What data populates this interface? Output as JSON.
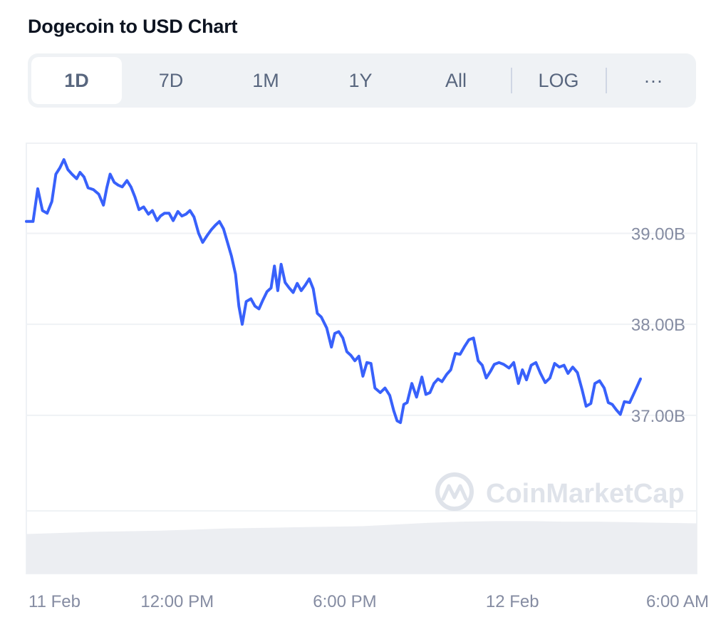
{
  "header": {
    "title": "Dogecoin to USD Chart"
  },
  "tabs": [
    {
      "label": "1D",
      "active": true
    },
    {
      "label": "7D",
      "active": false
    },
    {
      "label": "1M",
      "active": false
    },
    {
      "label": "1Y",
      "active": false
    },
    {
      "label": "All",
      "active": false
    },
    {
      "label": "LOG",
      "active": false
    },
    {
      "label": "···",
      "active": false
    }
  ],
  "watermark": {
    "text": "CoinMarketCap"
  },
  "colors": {
    "line": "#3861fb",
    "grid": "#eff2f5",
    "axis_text": "#858ca2",
    "volume": "#eceef2"
  },
  "chart_data": {
    "type": "line",
    "title": "Dogecoin to USD Chart",
    "xlabel": "",
    "ylabel": "",
    "y_tick_labels": [
      "39.00B",
      "38.00B",
      "37.00B"
    ],
    "y_ticks": [
      39.0,
      38.0,
      37.0
    ],
    "ylim": [
      35.95,
      39.99
    ],
    "x_tick_labels": [
      "11 Feb",
      "12:00 PM",
      "6:00 PM",
      "12 Feb",
      "6:00 AM"
    ],
    "x_ticks": [
      0.0,
      0.225,
      0.475,
      0.725,
      0.95
    ],
    "grid": true,
    "legend": "none",
    "series": [
      {
        "values": [
          [
            0.0,
            39.13
          ],
          [
            0.01,
            39.13
          ],
          [
            0.017,
            39.49
          ],
          [
            0.024,
            39.25
          ],
          [
            0.031,
            39.22
          ],
          [
            0.038,
            39.35
          ],
          [
            0.044,
            39.65
          ],
          [
            0.05,
            39.72
          ],
          [
            0.056,
            39.81
          ],
          [
            0.062,
            39.7
          ],
          [
            0.068,
            39.65
          ],
          [
            0.075,
            39.6
          ],
          [
            0.08,
            39.67
          ],
          [
            0.086,
            39.62
          ],
          [
            0.092,
            39.5
          ],
          [
            0.1,
            39.48
          ],
          [
            0.108,
            39.43
          ],
          [
            0.115,
            39.31
          ],
          [
            0.12,
            39.5
          ],
          [
            0.125,
            39.65
          ],
          [
            0.131,
            39.56
          ],
          [
            0.137,
            39.53
          ],
          [
            0.143,
            39.51
          ],
          [
            0.15,
            39.58
          ],
          [
            0.156,
            39.51
          ],
          [
            0.162,
            39.4
          ],
          [
            0.168,
            39.26
          ],
          [
            0.175,
            39.29
          ],
          [
            0.182,
            39.21
          ],
          [
            0.188,
            39.25
          ],
          [
            0.195,
            39.14
          ],
          [
            0.2,
            39.19
          ],
          [
            0.206,
            39.22
          ],
          [
            0.213,
            39.22
          ],
          [
            0.219,
            39.14
          ],
          [
            0.226,
            39.24
          ],
          [
            0.232,
            39.19
          ],
          [
            0.238,
            39.21
          ],
          [
            0.244,
            39.25
          ],
          [
            0.25,
            39.18
          ],
          [
            0.257,
            39.0
          ],
          [
            0.263,
            38.9
          ],
          [
            0.27,
            38.98
          ],
          [
            0.276,
            39.04
          ],
          [
            0.282,
            39.09
          ],
          [
            0.288,
            39.13
          ],
          [
            0.294,
            39.05
          ],
          [
            0.3,
            38.9
          ],
          [
            0.306,
            38.75
          ],
          [
            0.312,
            38.55
          ],
          [
            0.317,
            38.2
          ],
          [
            0.322,
            38.0
          ],
          [
            0.328,
            38.25
          ],
          [
            0.335,
            38.28
          ],
          [
            0.341,
            38.2
          ],
          [
            0.347,
            38.17
          ],
          [
            0.353,
            38.27
          ],
          [
            0.359,
            38.36
          ],
          [
            0.365,
            38.4
          ],
          [
            0.37,
            38.64
          ],
          [
            0.375,
            38.37
          ],
          [
            0.38,
            38.66
          ],
          [
            0.386,
            38.46
          ],
          [
            0.392,
            38.4
          ],
          [
            0.398,
            38.35
          ],
          [
            0.404,
            38.45
          ],
          [
            0.41,
            38.37
          ],
          [
            0.416,
            38.43
          ],
          [
            0.422,
            38.5
          ],
          [
            0.428,
            38.39
          ],
          [
            0.434,
            38.12
          ],
          [
            0.44,
            38.08
          ],
          [
            0.448,
            37.96
          ],
          [
            0.455,
            37.75
          ],
          [
            0.46,
            37.9
          ],
          [
            0.466,
            37.92
          ],
          [
            0.472,
            37.85
          ],
          [
            0.478,
            37.7
          ],
          [
            0.484,
            37.66
          ],
          [
            0.49,
            37.6
          ],
          [
            0.496,
            37.65
          ],
          [
            0.502,
            37.43
          ],
          [
            0.508,
            37.58
          ],
          [
            0.514,
            37.57
          ],
          [
            0.52,
            37.3
          ],
          [
            0.528,
            37.25
          ],
          [
            0.535,
            37.3
          ],
          [
            0.542,
            37.22
          ],
          [
            0.548,
            37.05
          ],
          [
            0.553,
            36.94
          ],
          [
            0.558,
            36.92
          ],
          [
            0.563,
            37.12
          ],
          [
            0.568,
            37.14
          ],
          [
            0.575,
            37.35
          ],
          [
            0.582,
            37.2
          ],
          [
            0.59,
            37.42
          ],
          [
            0.596,
            37.23
          ],
          [
            0.602,
            37.25
          ],
          [
            0.608,
            37.35
          ],
          [
            0.614,
            37.4
          ],
          [
            0.62,
            37.37
          ],
          [
            0.627,
            37.45
          ],
          [
            0.633,
            37.5
          ],
          [
            0.64,
            37.68
          ],
          [
            0.647,
            37.67
          ],
          [
            0.654,
            37.76
          ],
          [
            0.66,
            37.83
          ],
          [
            0.667,
            37.85
          ],
          [
            0.674,
            37.6
          ],
          [
            0.68,
            37.55
          ],
          [
            0.686,
            37.41
          ],
          [
            0.692,
            37.48
          ],
          [
            0.698,
            37.56
          ],
          [
            0.705,
            37.58
          ],
          [
            0.712,
            37.56
          ],
          [
            0.72,
            37.52
          ],
          [
            0.727,
            37.58
          ],
          [
            0.734,
            37.35
          ],
          [
            0.74,
            37.5
          ],
          [
            0.746,
            37.39
          ],
          [
            0.753,
            37.55
          ],
          [
            0.76,
            37.58
          ],
          [
            0.767,
            37.46
          ],
          [
            0.774,
            37.36
          ],
          [
            0.781,
            37.41
          ],
          [
            0.788,
            37.57
          ],
          [
            0.795,
            37.53
          ],
          [
            0.802,
            37.55
          ],
          [
            0.808,
            37.46
          ],
          [
            0.815,
            37.53
          ],
          [
            0.822,
            37.47
          ],
          [
            0.829,
            37.28
          ],
          [
            0.835,
            37.1
          ],
          [
            0.842,
            37.13
          ],
          [
            0.848,
            37.35
          ],
          [
            0.855,
            37.38
          ],
          [
            0.862,
            37.3
          ],
          [
            0.868,
            37.14
          ],
          [
            0.874,
            37.12
          ],
          [
            0.88,
            37.06
          ],
          [
            0.886,
            37.01
          ],
          [
            0.892,
            37.15
          ],
          [
            0.9,
            37.14
          ],
          [
            0.91,
            37.3
          ],
          [
            0.916,
            37.4
          ]
        ]
      }
    ],
    "volume": {
      "type": "area",
      "values": [
        [
          0.0,
          0.7
        ],
        [
          0.05,
          0.72
        ],
        [
          0.1,
          0.74
        ],
        [
          0.15,
          0.75
        ],
        [
          0.2,
          0.76
        ],
        [
          0.25,
          0.78
        ],
        [
          0.3,
          0.8
        ],
        [
          0.35,
          0.81
        ],
        [
          0.4,
          0.82
        ],
        [
          0.45,
          0.83
        ],
        [
          0.5,
          0.84
        ],
        [
          0.55,
          0.87
        ],
        [
          0.6,
          0.9
        ],
        [
          0.65,
          0.92
        ],
        [
          0.7,
          0.93
        ],
        [
          0.75,
          0.93
        ],
        [
          0.8,
          0.92
        ],
        [
          0.85,
          0.92
        ],
        [
          0.9,
          0.91
        ],
        [
          0.95,
          0.9
        ],
        [
          1.0,
          0.89
        ]
      ]
    }
  }
}
